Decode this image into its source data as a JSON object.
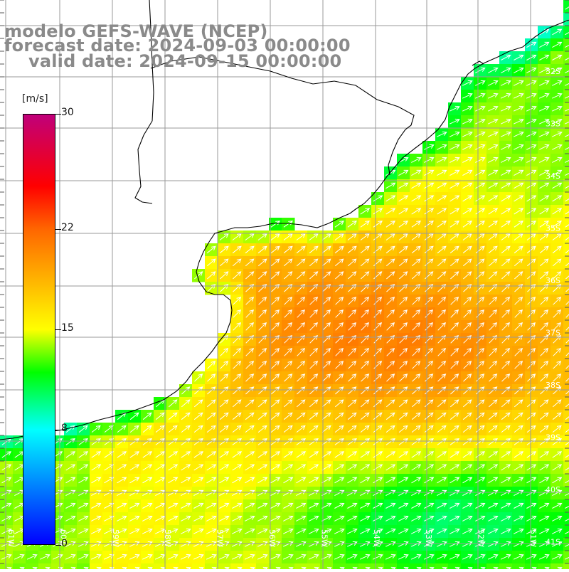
{
  "header": {
    "line1": "modelo GEFS-WAVE (NCEP)",
    "line2": "forecast date: 2024-09-03 00:00:00",
    "line3": "valid date: 2024-09-15 00:00:00"
  },
  "colorbar": {
    "unit": "[m/s]",
    "min": 0,
    "max": 30,
    "ticks": [
      {
        "value": 30,
        "label": "30"
      },
      {
        "value": 22,
        "label": "22"
      },
      {
        "value": 15,
        "label": "15"
      },
      {
        "value": 8,
        "label": "8"
      },
      {
        "value": 0,
        "label": "0"
      }
    ],
    "stops": [
      {
        "value": 0,
        "color": "#0000ff"
      },
      {
        "value": 8,
        "color": "#00ffff"
      },
      {
        "value": 12,
        "color": "#00ff00"
      },
      {
        "value": 15,
        "color": "#ffff00"
      },
      {
        "value": 22,
        "color": "#ff6600"
      },
      {
        "value": 25,
        "color": "#ff0000"
      },
      {
        "value": 30,
        "color": "#c0007a"
      }
    ]
  },
  "lat_labels": [
    "32S",
    "33S",
    "34S",
    "35S",
    "36S",
    "37S",
    "38S",
    "39S",
    "40S",
    "41S"
  ],
  "lon_labels": [
    "61W",
    "60W",
    "59W",
    "58W",
    "57W",
    "56W",
    "55W",
    "54W",
    "53W",
    "52W",
    "51W"
  ]
}
